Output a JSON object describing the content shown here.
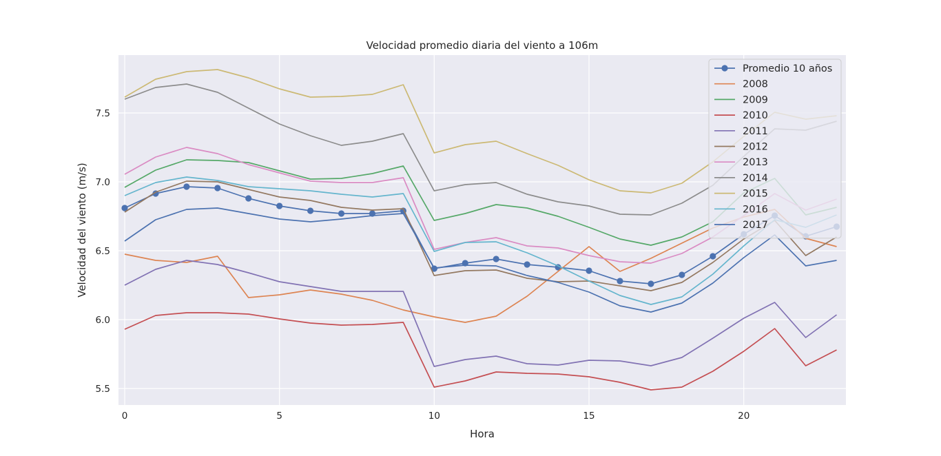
{
  "chart_data": {
    "type": "line",
    "title": "Velocidad  promedio diaria del viento a 106m",
    "xlabel": "Hora",
    "ylabel": "Velocidad del viento (m/s)",
    "xlim": [
      -0.2,
      23.3
    ],
    "ylim": [
      5.38,
      7.92
    ],
    "xticks": [
      0,
      5,
      10,
      15,
      20
    ],
    "yticks": [
      5.5,
      6.0,
      6.5,
      7.0,
      7.5
    ],
    "grid": true,
    "legend_position": "top-right",
    "x": [
      0,
      1,
      2,
      3,
      4,
      5,
      6,
      7,
      8,
      9,
      10,
      11,
      12,
      13,
      14,
      15,
      16,
      17,
      18,
      19,
      20,
      21,
      22,
      23
    ],
    "series": [
      {
        "name": "Promedio 10 años",
        "color": "#4c72b0",
        "markers": true,
        "values": [
          6.81,
          6.915,
          6.965,
          6.955,
          6.88,
          6.825,
          6.79,
          6.77,
          6.77,
          6.79,
          6.37,
          6.41,
          6.44,
          6.4,
          6.38,
          6.355,
          6.28,
          6.26,
          6.325,
          6.46,
          6.62,
          6.755,
          6.605,
          6.675
        ]
      },
      {
        "name": "2008",
        "color": "#dd8452",
        "markers": false,
        "values": [
          6.475,
          6.43,
          6.415,
          6.46,
          6.16,
          6.18,
          6.215,
          6.185,
          6.14,
          6.07,
          6.02,
          5.98,
          6.025,
          6.17,
          6.35,
          6.53,
          6.35,
          6.445,
          6.555,
          6.665,
          6.745,
          6.8,
          6.59,
          6.53
        ]
      },
      {
        "name": "2009",
        "color": "#55a868",
        "markers": false,
        "values": [
          6.96,
          7.085,
          7.16,
          7.155,
          7.14,
          7.08,
          7.02,
          7.025,
          7.06,
          7.115,
          6.72,
          6.77,
          6.835,
          6.81,
          6.75,
          6.67,
          6.585,
          6.54,
          6.6,
          6.71,
          6.92,
          7.025,
          6.76,
          6.815
        ]
      },
      {
        "name": "2010",
        "color": "#c44e52",
        "markers": false,
        "values": [
          5.93,
          6.03,
          6.05,
          6.05,
          6.04,
          6.005,
          5.975,
          5.96,
          5.965,
          5.98,
          5.51,
          5.555,
          5.62,
          5.61,
          5.605,
          5.585,
          5.545,
          5.49,
          5.51,
          5.625,
          5.77,
          5.935,
          5.665,
          5.78
        ]
      },
      {
        "name": "2011",
        "color": "#8172b3",
        "markers": false,
        "values": [
          6.25,
          6.365,
          6.43,
          6.4,
          6.34,
          6.275,
          6.24,
          6.205,
          6.205,
          6.205,
          5.66,
          5.71,
          5.735,
          5.68,
          5.67,
          5.705,
          5.7,
          5.665,
          5.725,
          5.865,
          6.01,
          6.125,
          5.87,
          6.035
        ]
      },
      {
        "name": "2012",
        "color": "#937860",
        "markers": false,
        "values": [
          6.78,
          6.925,
          7.005,
          7.0,
          6.945,
          6.89,
          6.865,
          6.815,
          6.795,
          6.805,
          6.32,
          6.355,
          6.36,
          6.3,
          6.275,
          6.28,
          6.245,
          6.21,
          6.27,
          6.415,
          6.585,
          6.72,
          6.465,
          6.6
        ]
      },
      {
        "name": "2013",
        "color": "#da8bc3",
        "markers": false,
        "values": [
          7.055,
          7.18,
          7.25,
          7.205,
          7.125,
          7.065,
          7.005,
          6.995,
          6.995,
          7.03,
          6.51,
          6.56,
          6.595,
          6.535,
          6.52,
          6.465,
          6.42,
          6.41,
          6.48,
          6.6,
          6.755,
          6.915,
          6.795,
          6.875
        ]
      },
      {
        "name": "2014",
        "color": "#8c8c8c",
        "markers": false,
        "values": [
          7.6,
          7.685,
          7.71,
          7.65,
          7.535,
          7.42,
          7.335,
          7.265,
          7.295,
          7.35,
          6.935,
          6.98,
          6.995,
          6.91,
          6.855,
          6.825,
          6.765,
          6.76,
          6.845,
          6.975,
          7.185,
          7.385,
          7.375,
          7.44
        ]
      },
      {
        "name": "2015",
        "color": "#ccb974",
        "markers": false,
        "values": [
          7.615,
          7.745,
          7.8,
          7.815,
          7.755,
          7.675,
          7.615,
          7.62,
          7.635,
          7.705,
          7.21,
          7.27,
          7.295,
          7.205,
          7.12,
          7.015,
          6.935,
          6.92,
          6.99,
          7.145,
          7.33,
          7.505,
          7.455,
          7.48
        ]
      },
      {
        "name": "2016",
        "color": "#64b5cd",
        "markers": false,
        "values": [
          6.9,
          6.995,
          7.035,
          7.01,
          6.965,
          6.95,
          6.935,
          6.91,
          6.89,
          6.915,
          6.495,
          6.56,
          6.565,
          6.485,
          6.39,
          6.28,
          6.175,
          6.11,
          6.165,
          6.33,
          6.535,
          6.725,
          6.67,
          6.76
        ]
      },
      {
        "name": "2017",
        "color": "#4c72b0",
        "markers": false,
        "values": [
          6.57,
          6.725,
          6.8,
          6.81,
          6.77,
          6.73,
          6.71,
          6.73,
          6.755,
          6.77,
          6.375,
          6.395,
          6.39,
          6.32,
          6.27,
          6.2,
          6.1,
          6.055,
          6.12,
          6.265,
          6.45,
          6.615,
          6.39,
          6.43
        ]
      }
    ]
  }
}
